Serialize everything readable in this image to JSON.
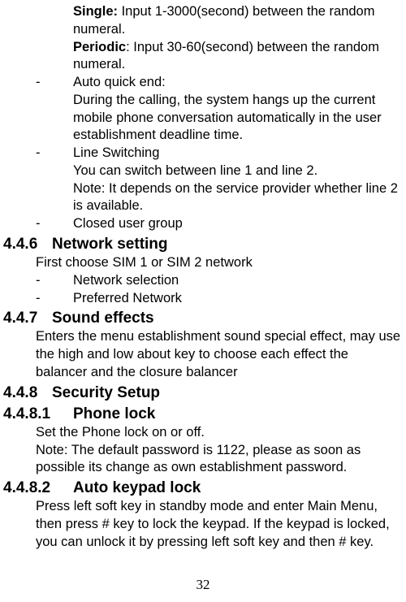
{
  "line1a": "Single:",
  "line1b": " Input 1-3000(second) between the random numeral.",
  "line2a": "Periodic",
  "line2b": ": Input 30-60(second) between the random numeral.",
  "bullet_dash": "-",
  "item_auto_quick_end_title": "Auto quick end:",
  "item_auto_quick_end_body": "During the calling, the system hangs up the current mobile phone conversation automatically in the user establishment deadline time.",
  "item_line_switching_title": "Line Switching",
  "item_line_switching_body1": "You can switch between line 1 and line 2.",
  "item_line_switching_body2": "Note: It depends on the service provider whether line 2 is available.",
  "item_closed_user_group": "Closed user group",
  "h446_num": "4.4.6",
  "h446_title": "Network setting",
  "h446_body": "First choose SIM 1 or SIM 2 network",
  "h446_item1": "Network selection",
  "h446_item2": "Preferred Network",
  "h447_num": "4.4.7",
  "h447_title": "Sound effects",
  "h447_body": "Enters the menu establishment sound special effect, may use the high and low about key to choose each effect the balancer and the closure balancer",
  "h448_num": "4.4.8",
  "h448_title": "Security Setup",
  "h4481_num": "4.4.8.1",
  "h4481_title": "Phone lock",
  "h4481_body1": "Set the Phone lock on or off.",
  "h4481_body2": "Note: The default password is 1122, please as soon as possible its change as own establishment password.",
  "h4482_num": "4.4.8.2",
  "h4482_title": "Auto keypad lock",
  "h4482_body": "Press left soft key in standby mode and enter Main Menu, then press # key to lock the keypad. If the keypad is locked, you can unlock it by pressing left soft key and then # key.",
  "page_number": "32"
}
